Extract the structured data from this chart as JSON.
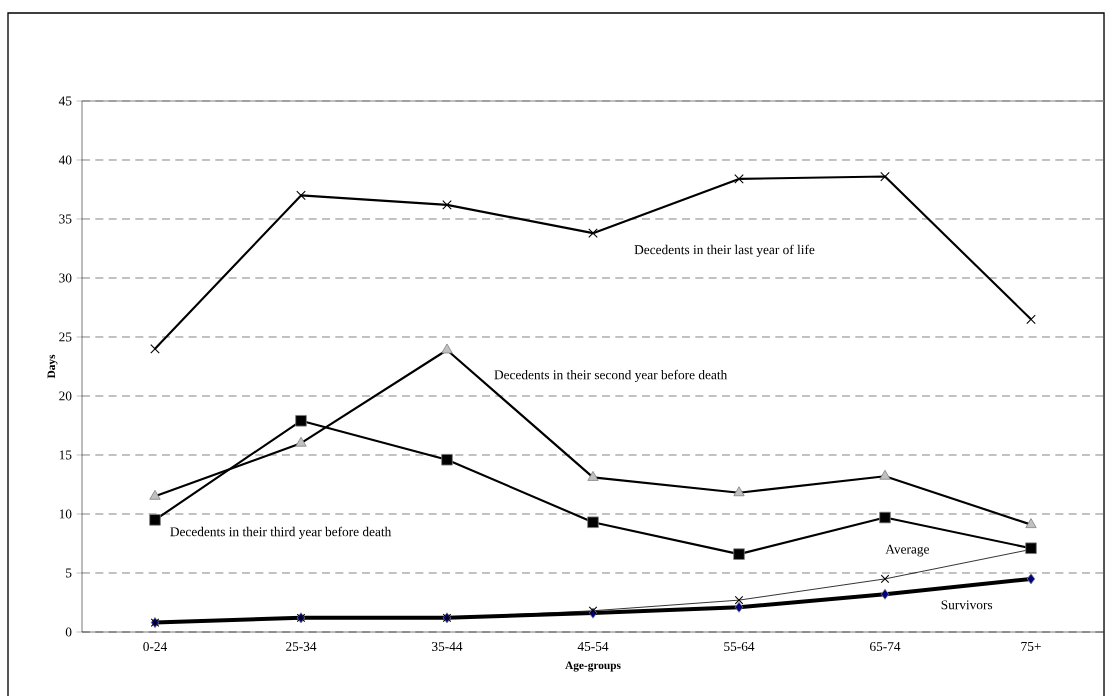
{
  "chart_data": {
    "type": "line",
    "xlabel": "Age-groups",
    "ylabel": "Days",
    "categories": [
      "0-24",
      "25-34",
      "35-44",
      "45-54",
      "55-64",
      "65-74",
      "75+"
    ],
    "ylim": [
      0,
      45
    ],
    "yticks": [
      0,
      5,
      10,
      15,
      20,
      25,
      30,
      35,
      40,
      45
    ],
    "grid": "y",
    "legend": false,
    "line_style": "solid",
    "series": [
      {
        "name": "Decedents in their last year of life",
        "color": "#000000",
        "marker": "cross",
        "values": [
          24.0,
          37.0,
          36.2,
          33.8,
          38.4,
          38.6,
          26.5
        ]
      },
      {
        "name": "Decedents in their second year before death",
        "color": "#c0c0c0",
        "marker": "triangle",
        "values": [
          11.5,
          16.0,
          23.9,
          13.1,
          11.8,
          13.2,
          9.1
        ]
      },
      {
        "name": "Decedents in their third year before death",
        "color": "#000000",
        "marker": "square",
        "values": [
          9.5,
          17.9,
          14.6,
          9.3,
          6.6,
          9.7,
          7.1
        ]
      },
      {
        "name": "Average",
        "color": "#000000",
        "marker": "cross",
        "values": [
          0.8,
          1.2,
          1.2,
          1.8,
          2.7,
          4.5,
          7.0
        ]
      },
      {
        "name": "Survivors",
        "color": "#000080",
        "marker": "diamond",
        "values": [
          0.8,
          1.2,
          1.2,
          1.6,
          2.1,
          3.2,
          4.5
        ]
      }
    ]
  }
}
